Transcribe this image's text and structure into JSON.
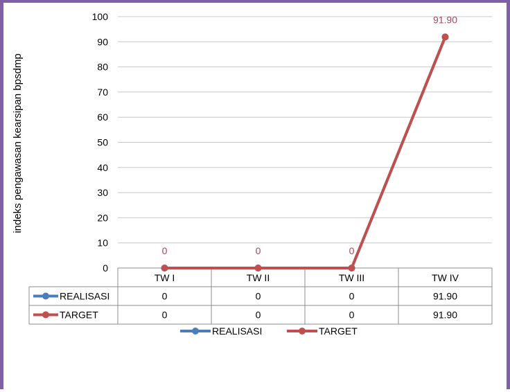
{
  "chart_data": {
    "type": "line",
    "title": "",
    "ylabel": "indeks pengawasan kearsipan bpsdmp",
    "xlabel": "",
    "ylim": [
      0,
      100
    ],
    "ytick_step": 10,
    "yticks": [
      "0",
      "10",
      "20",
      "30",
      "40",
      "50",
      "60",
      "70",
      "80",
      "90",
      "100"
    ],
    "categories": [
      "TW I",
      "TW II",
      "TW III",
      "TW IV"
    ],
    "series": [
      {
        "name": "REALISASI",
        "color": "#4a7ebb",
        "values": [
          0,
          0,
          0,
          91.9
        ],
        "table_values": [
          "0",
          "0",
          "0",
          "91.90"
        ]
      },
      {
        "name": "TARGET",
        "color": "#c0504d",
        "values": [
          0,
          0,
          0,
          91.9
        ],
        "table_values": [
          "0",
          "0",
          "0",
          "91.90"
        ]
      }
    ],
    "data_labels": [
      "0",
      "0",
      "0",
      "91.90"
    ],
    "data_label_color": "#a3485a",
    "grid": true,
    "legend": "bottom",
    "data_table": true
  }
}
